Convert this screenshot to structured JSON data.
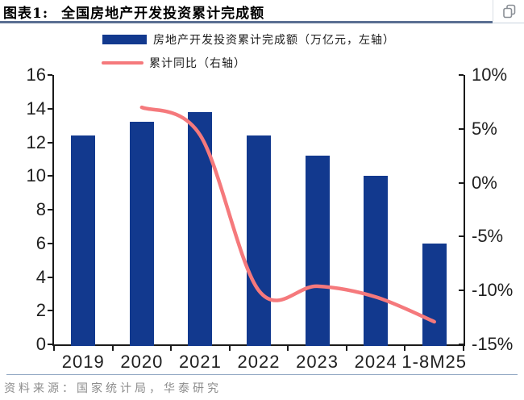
{
  "header": {
    "figure_label": "图表1:",
    "title": "全国房地产开发投资累计完成额"
  },
  "legend": [
    {
      "label": "房地产开发投资累计完成额（万亿元，左轴）",
      "swatch": "bar",
      "color": "#12398E"
    },
    {
      "label": "累计同比（右轴）",
      "swatch": "line",
      "color": "#F5797C"
    }
  ],
  "chart_data": {
    "type": "bar+line",
    "title": "全国房地产开发投资累计完成额",
    "categories": [
      "2019",
      "2020",
      "2021",
      "2022",
      "2023",
      "2024",
      "1-8M25"
    ],
    "series": [
      {
        "name": "房地产开发投资累计完成额（万亿元，左轴）",
        "type": "bar",
        "axis": "left",
        "color": "#12398E",
        "values": [
          12.4,
          13.2,
          13.8,
          12.4,
          11.2,
          10.0,
          6.0
        ]
      },
      {
        "name": "累计同比（右轴）",
        "type": "line",
        "axis": "right",
        "color": "#F5797C",
        "smooth": true,
        "values": [
          null,
          7.0,
          4.4,
          -10.0,
          -9.6,
          -10.6,
          -12.9
        ]
      }
    ],
    "left_axis": {
      "min": 0,
      "max": 16,
      "step": 2,
      "tick_labels": [
        "0",
        "2",
        "4",
        "6",
        "8",
        "10",
        "12",
        "14",
        "16"
      ]
    },
    "right_axis": {
      "min": -15,
      "max": 10,
      "step": 5,
      "tick_labels": [
        "10%",
        "5%",
        "0%",
        "-5%",
        "-10%",
        "-15%"
      ]
    },
    "grid": false,
    "legend_position": "top"
  },
  "footer": {
    "source": "资料来源：国家统计局，华泰研究"
  },
  "colors": {
    "bar": "#12398E",
    "line": "#F5797C",
    "axis": "#1a1a1a",
    "title_underline": "#5A6F92",
    "footer_separator": "#93A9C4",
    "source_text": "#8C8C8C"
  }
}
